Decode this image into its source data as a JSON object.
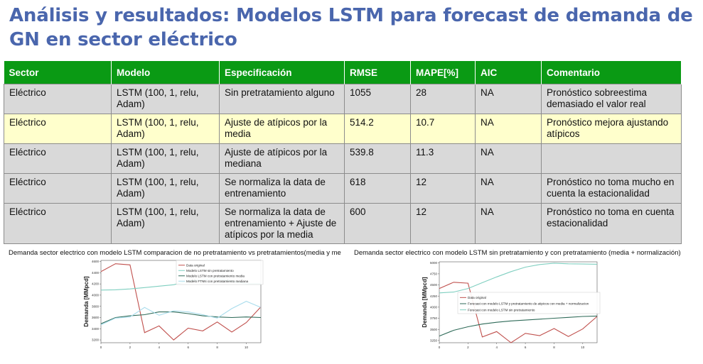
{
  "title": "Análisis y resultados: Modelos LSTM para forecast de demanda de GN en sector eléctrico",
  "table": {
    "headers": [
      "Sector",
      "Modelo",
      "Especificación",
      "RMSE",
      "MAPE[%]",
      "AIC",
      "Comentario"
    ],
    "rows": [
      [
        "Eléctrico",
        "LSTM (100, 1, relu, Adam)",
        "Sin pretratamiento alguno",
        "1055",
        "28",
        "NA",
        "Pronóstico sobreestima demasiado el valor real"
      ],
      [
        "Eléctrico",
        "LSTM (100, 1, relu, Adam)",
        "Ajuste de atípicos por la media",
        "514.2",
        "10.7",
        "NA",
        "Pronóstico mejora ajustando atípicos"
      ],
      [
        "Eléctrico",
        "LSTM (100, 1, relu, Adam)",
        "Ajuste de atípicos por la mediana",
        "539.8",
        "11.3",
        "NA",
        ""
      ],
      [
        "Eléctrico",
        "LSTM (100, 1, relu, Adam)",
        "Se normaliza la data de entrenamiento",
        "618",
        "12",
        "NA",
        "Pronóstico no toma mucho en cuenta la estacionalidad"
      ],
      [
        "Eléctrico",
        "LSTM (100, 1, relu, Adam)",
        "Se normaliza la data de entrenamiento + Ajuste de atípicos por la media",
        "600",
        "12",
        "NA",
        "Pronóstico no toma en cuenta estacionalidad"
      ]
    ]
  },
  "chart_data": [
    {
      "type": "line",
      "title": "Demanda sector electrico con modelo LSTM comparacion de no pretratamiento vs pretratamientos(media y mediana)",
      "xlabel": "",
      "ylabel": "Demanda [MMpcd]",
      "xlim": [
        0,
        11
      ],
      "ylim": [
        3150,
        4620
      ],
      "xticks": [
        0,
        2,
        4,
        6,
        8,
        10
      ],
      "yticks": [
        3200,
        3400,
        3600,
        3800,
        4000,
        4200,
        4400,
        4600
      ],
      "legend": "top-right",
      "series": [
        {
          "name": "Data original",
          "color": "#c0504d",
          "x": [
            0,
            1,
            2,
            3,
            4,
            5,
            6,
            7,
            8,
            9,
            10,
            11
          ],
          "y": [
            4420,
            4560,
            4540,
            3330,
            3450,
            3200,
            3410,
            3360,
            3520,
            3340,
            3510,
            3790
          ]
        },
        {
          "name": "Modelo LSTM sin pretratamiento",
          "color": "#7fcfc0",
          "x": [
            0,
            1,
            2,
            3,
            4,
            5,
            6,
            7,
            8,
            9,
            10,
            11
          ],
          "y": [
            4090,
            4095,
            4110,
            4135,
            4160,
            4185,
            4250,
            4280,
            4290,
            4250,
            4200,
            4200
          ]
        },
        {
          "name": "Modelo LSTM con pretratamiento media",
          "color": "#2e6a58",
          "x": [
            0,
            1,
            2,
            3,
            4,
            5,
            6,
            7,
            8,
            9,
            10,
            11
          ],
          "y": [
            3490,
            3600,
            3630,
            3650,
            3700,
            3700,
            3670,
            3630,
            3610,
            3600,
            3610,
            3600
          ]
        },
        {
          "name": "Modelo FTNN con pretratamiento mediana",
          "color": "#a8dcec",
          "x": [
            0,
            1,
            2,
            3,
            4,
            5,
            6,
            7,
            8,
            9,
            10,
            11
          ],
          "y": [
            3470,
            3590,
            3610,
            3780,
            3640,
            3720,
            3700,
            3650,
            3590,
            3760,
            3890,
            3780
          ]
        }
      ]
    },
    {
      "type": "line",
      "title": "Demanda sector electrico con modelo LSTM sin pretratamiento y con pretratamiento (media + normalización)",
      "xlabel": "",
      "ylabel": "Demanda [MMpcd]",
      "xlim": [
        0,
        11
      ],
      "ylim": [
        3200,
        5020
      ],
      "xticks": [
        0,
        2,
        4,
        6,
        8,
        10
      ],
      "yticks": [
        3250,
        3500,
        3750,
        4000,
        4250,
        4500,
        4750,
        5000
      ],
      "legend": "center-left",
      "series": [
        {
          "name": "Data original",
          "color": "#c0504d",
          "x": [
            0,
            1,
            2,
            3,
            4,
            5,
            6,
            7,
            8,
            9,
            10,
            11
          ],
          "y": [
            4420,
            4560,
            4540,
            3330,
            3450,
            3200,
            3410,
            3360,
            3520,
            3340,
            3510,
            3790
          ]
        },
        {
          "name": "Forecast con modelo LSTM y pretratamiento de atipicos con media + normalizacion",
          "color": "#2e6a58",
          "x": [
            0,
            1,
            2,
            3,
            4,
            5,
            6,
            7,
            8,
            9,
            10,
            11
          ],
          "y": [
            3350,
            3480,
            3560,
            3620,
            3660,
            3690,
            3710,
            3730,
            3750,
            3770,
            3790,
            3800
          ]
        },
        {
          "name": "Forecast con modelo LSTM sin pretratamiento",
          "color": "#7fcfc0",
          "x": [
            0,
            1,
            2,
            3,
            4,
            5,
            6,
            7,
            8,
            9,
            10,
            11
          ],
          "y": [
            4320,
            4340,
            4420,
            4550,
            4680,
            4800,
            4900,
            4960,
            4990,
            4975,
            4970,
            4965
          ]
        }
      ]
    }
  ]
}
